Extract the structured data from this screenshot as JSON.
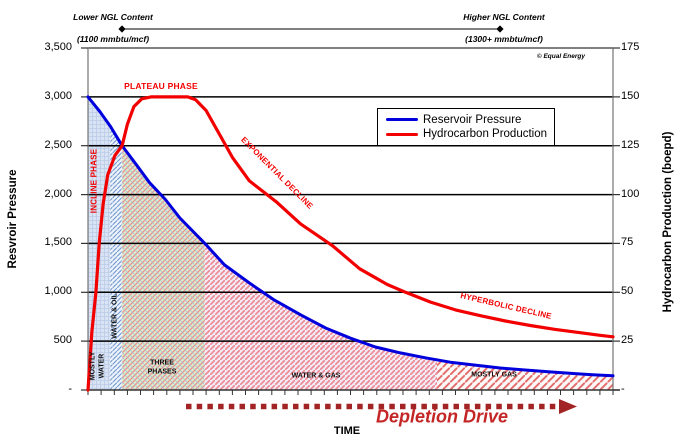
{
  "header": {
    "lower_ngl_title": "Lower NGL Content",
    "lower_ngl_subtitle": "(1100 mmbtu/mcf)",
    "higher_ngl_title": "Higher NGL Content",
    "higher_ngl_subtitle": "(1300+ mmbtu/mcf)",
    "copyright": "© Equal Energy"
  },
  "footer": {
    "depletion_label": "Depletion Drive",
    "arrow_color": "#a32424",
    "label_color": "#c42626"
  },
  "chart_data": {
    "type": "line",
    "x_axis": {
      "title": "TIME",
      "range": [
        0,
        40
      ],
      "tick_step": 1,
      "tick_labels_shown": false
    },
    "y_left": {
      "title": "Resvroir Pressure",
      "range": [
        0,
        3500
      ],
      "gridline_step": 500,
      "tick_labels": [
        "3,500",
        "3,000",
        "2,500",
        "2,000",
        "1,500",
        "1,000",
        "500",
        "-"
      ]
    },
    "y_right": {
      "title": "Hydrocarbon Production (boepd)",
      "range": [
        0,
        175
      ],
      "tick_labels": [
        "175",
        "150",
        "125",
        "100",
        "75",
        "50",
        "25",
        "-"
      ]
    },
    "legend_position": "upper-right-inside",
    "grid": true,
    "series": [
      {
        "name": "Reservoir Pressure",
        "axis": "left",
        "color": "#0000dd",
        "points": [
          [
            0,
            3000
          ],
          [
            0.9,
            2850
          ],
          [
            1.7,
            2700
          ],
          [
            2.6,
            2500
          ],
          [
            3.6,
            2320
          ],
          [
            4.7,
            2120
          ],
          [
            5.9,
            1950
          ],
          [
            7.0,
            1760
          ],
          [
            8.9,
            1500
          ],
          [
            10.4,
            1280
          ],
          [
            12.3,
            1095
          ],
          [
            14.2,
            920
          ],
          [
            16.2,
            770
          ],
          [
            18.1,
            635
          ],
          [
            20.0,
            530
          ],
          [
            21.9,
            440
          ],
          [
            23.8,
            380
          ],
          [
            25.7,
            330
          ],
          [
            27.6,
            285
          ],
          [
            29.5,
            255
          ],
          [
            31.4,
            225
          ],
          [
            33.3,
            205
          ],
          [
            35.2,
            185
          ],
          [
            37.1,
            168
          ],
          [
            38.6,
            155
          ],
          [
            40,
            145
          ]
        ]
      },
      {
        "name": "Hydrocarbon Production",
        "axis": "right",
        "color": "#f20000",
        "points": [
          [
            0,
            0
          ],
          [
            0.3,
            30
          ],
          [
            0.6,
            50
          ],
          [
            0.85,
            75
          ],
          [
            1.15,
            95
          ],
          [
            1.5,
            110
          ],
          [
            2.05,
            120
          ],
          [
            2.6,
            125
          ],
          [
            3.0,
            136
          ],
          [
            3.5,
            145
          ],
          [
            4.1,
            149
          ],
          [
            4.8,
            150
          ],
          [
            6.0,
            150
          ],
          [
            7.6,
            150
          ],
          [
            8.2,
            148.5
          ],
          [
            9.0,
            143
          ],
          [
            10.0,
            131
          ],
          [
            11.0,
            119
          ],
          [
            12.3,
            107
          ],
          [
            14.4,
            96
          ],
          [
            16.2,
            85
          ],
          [
            18.6,
            74
          ],
          [
            20.7,
            62
          ],
          [
            22.8,
            54
          ],
          [
            24.2,
            50
          ],
          [
            26.1,
            45
          ],
          [
            28.0,
            41
          ],
          [
            29.9,
            38
          ],
          [
            31.8,
            35.3
          ],
          [
            33.7,
            33
          ],
          [
            35.6,
            31
          ],
          [
            37.5,
            29.3
          ],
          [
            39.0,
            28
          ],
          [
            40,
            27.2
          ]
        ]
      }
    ],
    "annotations": {
      "incline": "INCLINE PHASE",
      "plateau": "PLATEAU PHASE",
      "exponential": "EXPONENTIAL DECLINE",
      "hyperbolic": "HYPERBOLIC DECLINE"
    },
    "regions": [
      {
        "id": "mostly-water",
        "label_line1": "MOSTLY",
        "label_line2": "WATER",
        "t_start": 0,
        "t_end": 1.7
      },
      {
        "id": "water-oil",
        "label": "WATER & OIL",
        "t_start": 1.7,
        "t_end": 2.6
      },
      {
        "id": "three-phases",
        "label_line1": "THREE",
        "label_line2": "PHASES",
        "t_start": 2.6,
        "t_end": 8.9
      },
      {
        "id": "water-gas",
        "label": "WATER & GAS",
        "t_start": 8.9,
        "t_end": 26.6
      },
      {
        "id": "mostly-gas",
        "label": "MOSTLY GAS",
        "t_start": 26.6,
        "t_end": 40
      }
    ]
  }
}
